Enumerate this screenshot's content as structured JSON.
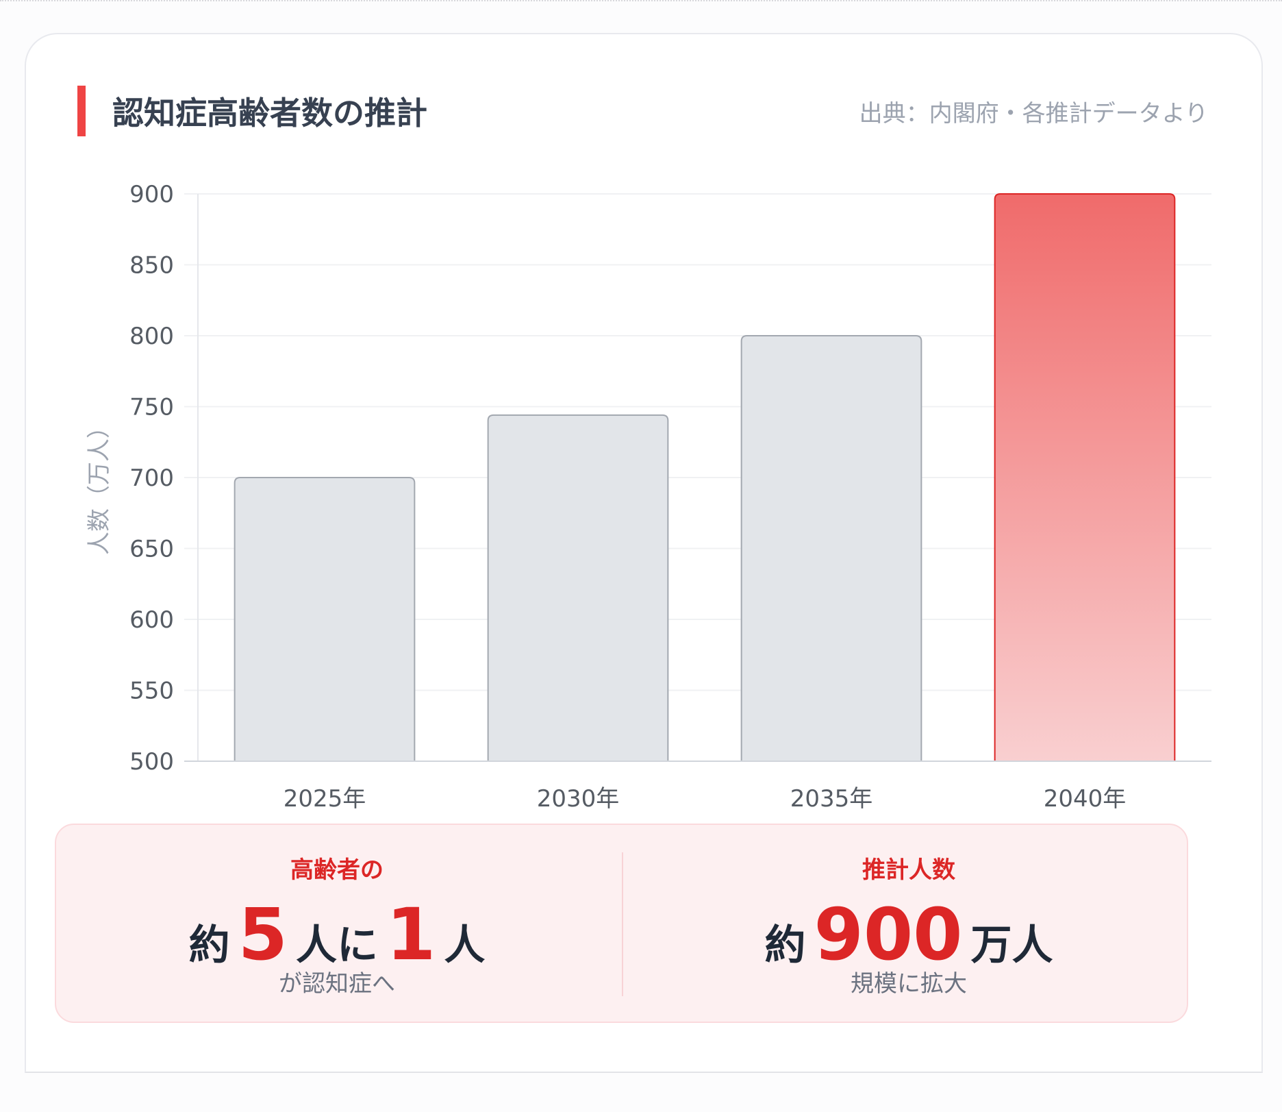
{
  "header": {
    "title": "認知症高齢者数の推計",
    "source": "出典：内閣府・各推計データより"
  },
  "chart_data": {
    "type": "bar",
    "title": "認知症高齢者数の推計",
    "categories": [
      "2025年",
      "2030年",
      "2035年",
      "2040年"
    ],
    "values": [
      700,
      744,
      800,
      900
    ],
    "xlabel": "",
    "ylabel": "人数（万人）",
    "ylim": [
      500,
      900
    ],
    "yticks": [
      500,
      550,
      600,
      650,
      700,
      750,
      800,
      850,
      900
    ],
    "grid": true,
    "highlight_index": 3,
    "colors": {
      "bar": "#e2e5e9",
      "bar_border": "#a3a8b0",
      "highlight_top": "#f06b6b",
      "highlight_bottom": "#f9cfd0",
      "highlight_border": "#dc2626"
    }
  },
  "summary": {
    "left": {
      "label": "高齢者の",
      "prefix": "約",
      "num1": "5",
      "mid": "人に",
      "num2": "1",
      "suffix": "人",
      "sub": "が認知症へ"
    },
    "right": {
      "label": "推計人数",
      "prefix": "約",
      "num": "900",
      "suffix": "万人",
      "sub": "規模に拡大"
    }
  }
}
